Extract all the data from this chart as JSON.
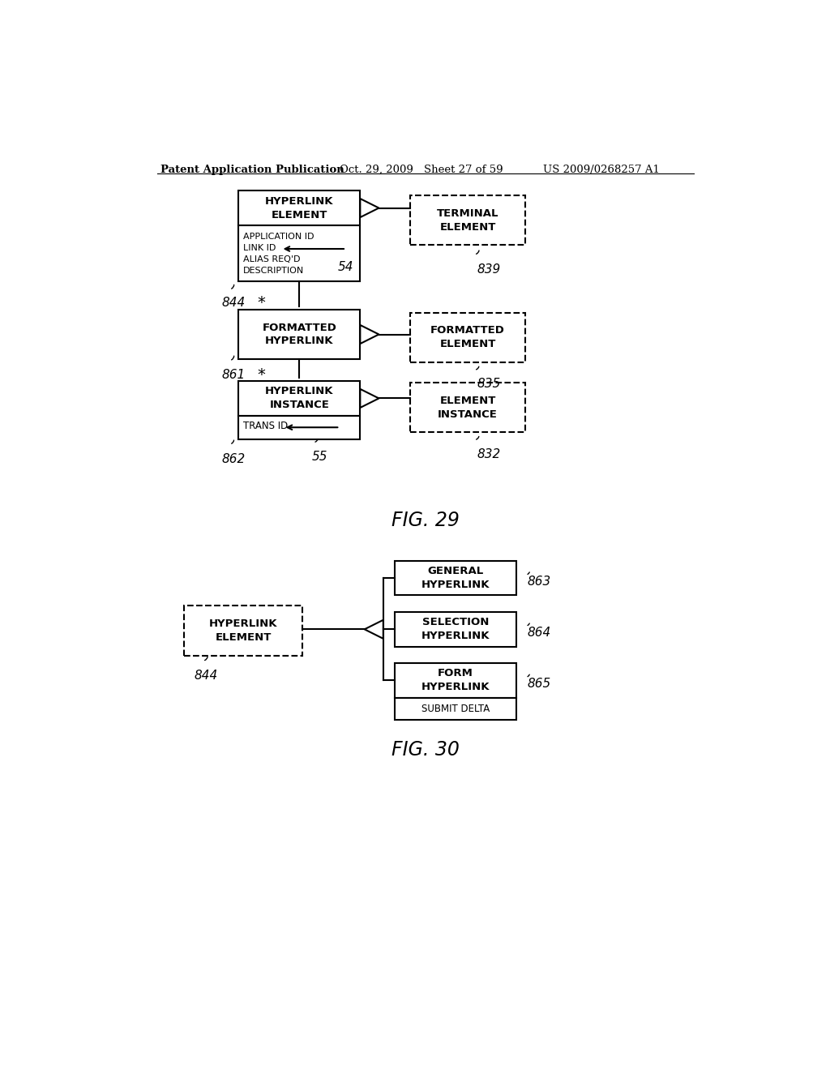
{
  "bg_color": "#ffffff",
  "header_text": "Patent Application Publication",
  "header_date": "Oct. 29, 2009",
  "header_sheet": "Sheet 27 of 59",
  "header_patent": "US 2009/0268257 A1",
  "fig29_title": "FIG. 29",
  "fig30_title": "FIG. 30"
}
